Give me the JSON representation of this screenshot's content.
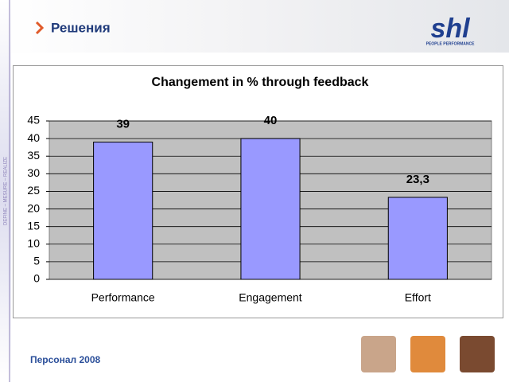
{
  "header": {
    "title": "Решения",
    "logo": "shl",
    "logo_tagline": "PEOPLE PERFORMANCE"
  },
  "sidebar": {
    "text": "DEFINE – MESURE – REALIZE"
  },
  "footer": {
    "text": "Персонал 2008"
  },
  "chart_data": {
    "type": "bar",
    "title": "Changement in % through feedback",
    "categories": [
      "Performance",
      "Engagement",
      "Effort"
    ],
    "values": [
      39,
      40,
      23.3
    ],
    "value_labels": [
      "39",
      "40",
      "23,3"
    ],
    "color": "#9999ff",
    "ylim": [
      0,
      45
    ],
    "yticks": [
      0,
      5,
      10,
      15,
      20,
      25,
      30,
      35,
      40,
      45
    ],
    "grid": true
  }
}
